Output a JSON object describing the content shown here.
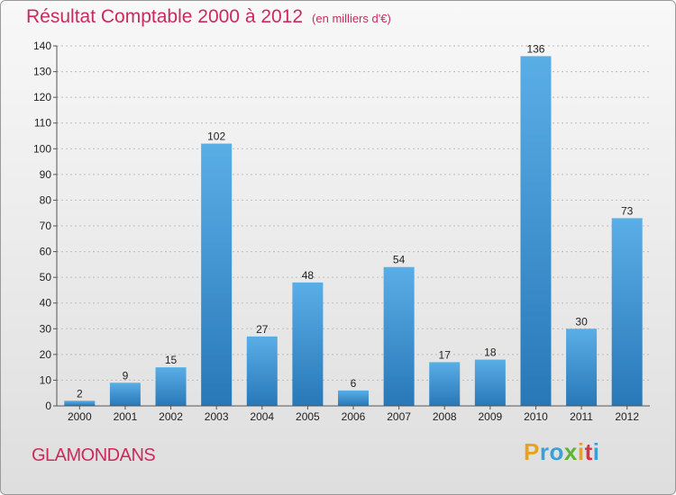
{
  "title": "Résultat Comptable 2000 à 2012",
  "subtitle": "(en milliers d'€)",
  "commune": "GLAMONDANS",
  "brand": {
    "letters": [
      "P",
      "r",
      "o",
      "x",
      "i",
      "t",
      "i"
    ],
    "colors": [
      "#e8a21c",
      "#3aa0d8",
      "#3aa0d8",
      "#5ab531",
      "#e8a21c",
      "#d8324a",
      "#3aa0d8"
    ]
  },
  "colors": {
    "title": "#cc2a5c",
    "bar_light": "#5aaee6",
    "bar_dark": "#2878b8"
  },
  "chart_data": {
    "type": "bar",
    "title": "Résultat Comptable 2000 à 2012",
    "categories": [
      "2000",
      "2001",
      "2002",
      "2003",
      "2004",
      "2005",
      "2006",
      "2007",
      "2008",
      "2009",
      "2010",
      "2011",
      "2012"
    ],
    "values": [
      2,
      9,
      15,
      102,
      27,
      48,
      6,
      54,
      17,
      18,
      136,
      30,
      73
    ],
    "data_labels": [
      "2",
      "9",
      "15",
      "102",
      "27",
      "48",
      "6",
      "54",
      "17",
      "18",
      "136",
      "30",
      "73"
    ],
    "yticks": [
      "0",
      "10",
      "20",
      "30",
      "40",
      "50",
      "60",
      "70",
      "80",
      "90",
      "100",
      "110",
      "120",
      "130",
      "140"
    ],
    "ylim": [
      0,
      140
    ],
    "grid": true,
    "legend": "none"
  }
}
